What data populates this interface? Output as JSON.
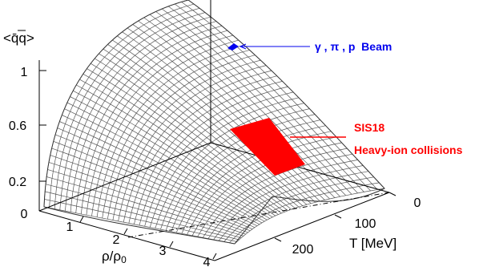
{
  "chart_data": {
    "type": "surface",
    "title": "",
    "zlabel": "<q̄q>",
    "xlabel_parts": [
      "ρ/ρ",
      "0"
    ],
    "ylabel": "T [MeV]",
    "z_ticks": [
      "1",
      "0.6",
      "0.2",
      "0"
    ],
    "x_ticks": [
      "1",
      "2",
      "3",
      "4"
    ],
    "y_ticks": [
      "0",
      "100",
      "200"
    ],
    "xlim": [
      0,
      4
    ],
    "ylim": [
      0,
      250
    ],
    "zlim": [
      0,
      1
    ],
    "grid": true,
    "regions": [
      {
        "name": "γ,π,p Beam",
        "label": "γ , π , p  Beam",
        "x": 0,
        "y": 30,
        "z": 0.85,
        "color": "#0000ee"
      },
      {
        "name": "SIS18",
        "label": "SIS18",
        "sub_label": "Heavy-ion collisions",
        "x_range": [
          1.6,
          3.0
        ],
        "y_range": [
          40,
          110
        ],
        "color": "#ff0000"
      }
    ]
  },
  "colors": {
    "surface": "#555555",
    "beam": "#0000ee",
    "sis": "#ff0000",
    "axis": "#000000"
  }
}
